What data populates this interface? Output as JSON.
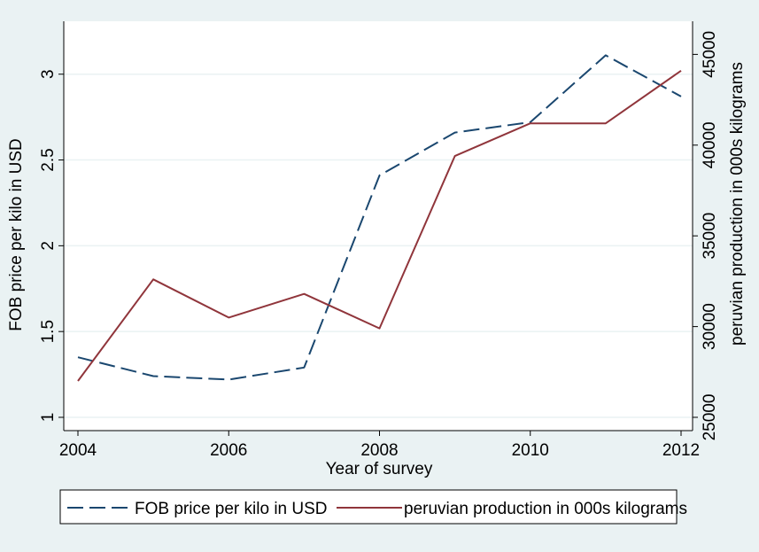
{
  "chart_data": {
    "type": "line",
    "title": "",
    "xlabel": "Year of survey",
    "ylabel": "FOB price per kilo in USD",
    "y2label": "peruvian production in 000s kilograms",
    "x": [
      2004,
      2005,
      2006,
      2007,
      2008,
      2009,
      2010,
      2011,
      2012
    ],
    "xlim": [
      2004,
      2012
    ],
    "ylim": [
      1,
      3.2
    ],
    "y2lim": [
      25000,
      45800
    ],
    "xticks": [
      "2004",
      "2006",
      "2008",
      "2010",
      "2012"
    ],
    "yticks": [
      "1",
      "1.5",
      "2",
      "2.5",
      "3"
    ],
    "y2ticks": [
      "25000",
      "30000",
      "35000",
      "40000",
      "45000"
    ],
    "grid": true,
    "legend_position": "bottom",
    "series": [
      {
        "name": "FOB price per kilo in USD",
        "axis": "left",
        "style": "dashed",
        "color": "#1a476f",
        "values": [
          1.35,
          1.24,
          1.22,
          1.29,
          2.41,
          2.66,
          2.72,
          3.11,
          2.87
        ]
      },
      {
        "name": "peruvian production in 000s kilograms",
        "axis": "right",
        "style": "solid",
        "color": "#90353b",
        "values": [
          27000,
          32600,
          30500,
          31800,
          29900,
          39400,
          41200,
          41200,
          44100
        ]
      }
    ]
  },
  "colors": {
    "background": "#eaf2f3",
    "plot_area": "#ffffff",
    "grid": "#eaf2f3"
  }
}
